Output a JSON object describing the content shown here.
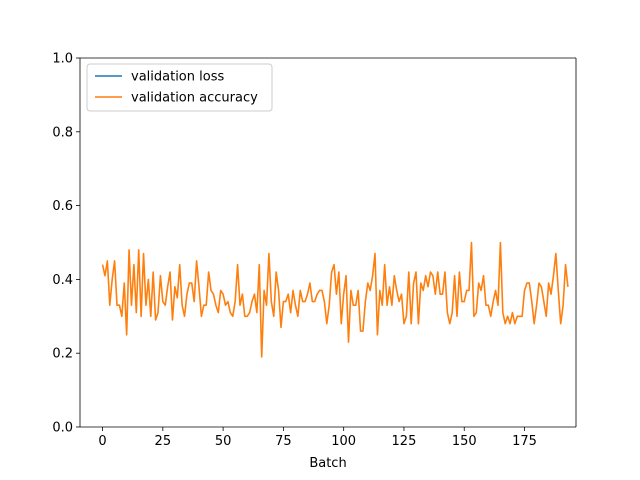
{
  "chart_data": {
    "type": "line",
    "title": "",
    "xlabel": "Batch",
    "ylabel": "",
    "xlim": [
      -9.35,
      196.35
    ],
    "ylim": [
      0.0,
      1.0
    ],
    "xticks": [
      0,
      25,
      50,
      75,
      100,
      125,
      150,
      175
    ],
    "yticks": [
      0.0,
      0.2,
      0.4,
      0.6,
      0.8,
      1.0
    ],
    "xtick_labels": [
      "0",
      "25",
      "50",
      "75",
      "100",
      "125",
      "150",
      "175"
    ],
    "ytick_labels": [
      "0.0",
      "0.2",
      "0.4",
      "0.6",
      "0.8",
      "1.0"
    ],
    "grid": false,
    "legend_position": "top-left",
    "series": [
      {
        "name": "validation loss",
        "color": "#1f77b4",
        "values": []
      },
      {
        "name": "validation accuracy",
        "color": "#ff7f0e",
        "values": [
          0.44,
          0.41,
          0.45,
          0.33,
          0.4,
          0.45,
          0.33,
          0.33,
          0.3,
          0.39,
          0.25,
          0.48,
          0.33,
          0.44,
          0.31,
          0.48,
          0.3,
          0.47,
          0.33,
          0.4,
          0.3,
          0.42,
          0.29,
          0.31,
          0.41,
          0.34,
          0.33,
          0.38,
          0.42,
          0.29,
          0.38,
          0.35,
          0.44,
          0.33,
          0.3,
          0.36,
          0.39,
          0.39,
          0.34,
          0.45,
          0.38,
          0.3,
          0.33,
          0.33,
          0.42,
          0.37,
          0.36,
          0.33,
          0.31,
          0.37,
          0.36,
          0.33,
          0.34,
          0.31,
          0.3,
          0.34,
          0.44,
          0.33,
          0.36,
          0.3,
          0.3,
          0.31,
          0.34,
          0.36,
          0.31,
          0.44,
          0.19,
          0.37,
          0.33,
          0.47,
          0.34,
          0.3,
          0.42,
          0.37,
          0.27,
          0.34,
          0.34,
          0.36,
          0.31,
          0.37,
          0.33,
          0.3,
          0.37,
          0.34,
          0.34,
          0.36,
          0.39,
          0.34,
          0.34,
          0.36,
          0.37,
          0.37,
          0.34,
          0.28,
          0.33,
          0.42,
          0.44,
          0.36,
          0.42,
          0.28,
          0.36,
          0.41,
          0.23,
          0.37,
          0.33,
          0.33,
          0.37,
          0.26,
          0.26,
          0.34,
          0.39,
          0.37,
          0.41,
          0.47,
          0.25,
          0.37,
          0.33,
          0.44,
          0.33,
          0.38,
          0.33,
          0.41,
          0.37,
          0.34,
          0.36,
          0.28,
          0.3,
          0.42,
          0.28,
          0.39,
          0.42,
          0.28,
          0.39,
          0.37,
          0.41,
          0.38,
          0.42,
          0.41,
          0.36,
          0.42,
          0.36,
          0.36,
          0.42,
          0.31,
          0.28,
          0.31,
          0.41,
          0.3,
          0.42,
          0.34,
          0.34,
          0.37,
          0.37,
          0.5,
          0.3,
          0.31,
          0.39,
          0.37,
          0.41,
          0.33,
          0.33,
          0.3,
          0.34,
          0.37,
          0.33,
          0.5,
          0.31,
          0.28,
          0.3,
          0.28,
          0.31,
          0.28,
          0.3,
          0.3,
          0.3,
          0.37,
          0.39,
          0.39,
          0.34,
          0.28,
          0.33,
          0.39,
          0.38,
          0.34,
          0.3,
          0.39,
          0.36,
          0.41,
          0.47,
          0.37,
          0.28,
          0.33,
          0.44,
          0.38
        ]
      }
    ]
  }
}
